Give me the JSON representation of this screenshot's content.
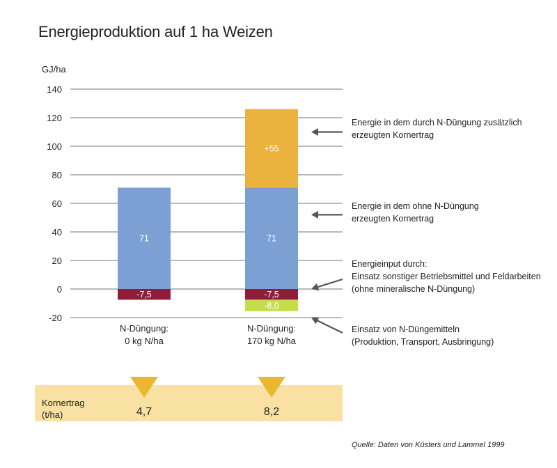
{
  "title": "Energieproduktion auf 1 ha Weizen",
  "colors": {
    "grid": "#444444",
    "blue": "#7C9FD4",
    "orange": "#EBB33E",
    "darkred": "#8E1D3A",
    "lime": "#C6DD4A",
    "band": "#F8E1A2",
    "triangle": "#EAB82E",
    "arrow": "#555555"
  },
  "chart_data": {
    "type": "bar",
    "stacked": true,
    "ylabel": "GJ/ha",
    "ylim": [
      -20,
      140
    ],
    "yticks": [
      140,
      120,
      100,
      80,
      60,
      40,
      20,
      0,
      -20
    ],
    "grid": true,
    "categories": [
      "N-Düngung:\n0 kg N/ha",
      "N-Düngung:\n170 kg N/ha"
    ],
    "series": [
      {
        "key": "base",
        "color": "blue",
        "values": [
          71,
          71
        ],
        "labels": [
          "71",
          "71"
        ]
      },
      {
        "key": "extra",
        "color": "orange",
        "values": [
          0,
          55
        ],
        "labels": [
          "",
          "+55"
        ]
      },
      {
        "key": "input_other",
        "color": "darkred",
        "values": [
          -7.5,
          -7.5
        ],
        "labels": [
          "-7,5",
          "-7,5"
        ]
      },
      {
        "key": "input_n",
        "color": "lime",
        "values": [
          0,
          -8.0
        ],
        "labels": [
          "",
          "-8,0"
        ]
      }
    ]
  },
  "annotations": [
    {
      "text": "Energie in dem durch N-Düngung zusätzlich\nerzeugten Kornertrag",
      "value": 110
    },
    {
      "text": "Energie in dem ohne N-Düngung\nerzeugten Kornertrag",
      "value": 52
    },
    {
      "text": "Energieinput durch:\nEinsatz sonstiger Betriebsmittel und Feldarbeiten\n(ohne mineralische N-Düngung)",
      "value": 0
    },
    {
      "text": "Einsatz von N-Düngemitteln\n(Produktion, Transport, Ausbringung)",
      "value": -20
    }
  ],
  "yield": {
    "label": "Kornertrag\n(t/ha)",
    "values": [
      "4,7",
      "8,2"
    ]
  },
  "source": "Quelle: Daten von Küsters und Lammel 1999"
}
